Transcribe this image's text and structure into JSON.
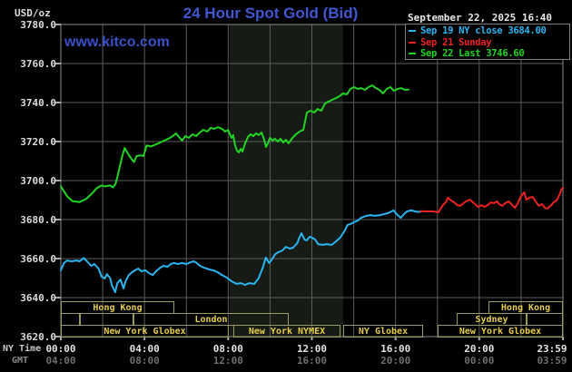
{
  "header": {
    "unit_label": "USD/oz",
    "title": "24 Hour Spot Gold (Bid)",
    "datetime": "September 22, 2025 16:40",
    "watermark": "www.kitco.com"
  },
  "legend": {
    "items": [
      {
        "label": "Sep 19 NY close 3684.00",
        "color": "#2ab4f0"
      },
      {
        "label": "Sep 21 Sunday",
        "color": "#ee2222"
      },
      {
        "label": "Sep 22 Last 3746.60",
        "color": "#22d422"
      }
    ]
  },
  "colors": {
    "background": "#000000",
    "grid": "#5c5c5c",
    "frame": "#8a8a8a",
    "tick": "#a8a8a8",
    "band": "#161b16",
    "session_border": "#9a9a58",
    "session_text": "#e6cc4c"
  },
  "chart_data": {
    "type": "line",
    "title": "24 Hour Spot Gold (Bid)",
    "ylabel": "USD/oz",
    "ylim": [
      3620,
      3780
    ],
    "y_ticks": [
      "3780.0",
      "3760.0",
      "3740.0",
      "3720.0",
      "3700.0",
      "3680.0",
      "3660.0",
      "3640.0",
      "3620.0"
    ],
    "y_tick_values": [
      3780,
      3760,
      3740,
      3720,
      3700,
      3680,
      3660,
      3640,
      3620
    ],
    "x_range_hours": [
      0,
      24
    ],
    "x_axis": {
      "ny_label": "NY Time",
      "gmt_label": "GMT",
      "ny_ticks": [
        "00:00",
        "04:00",
        "08:00",
        "12:00",
        "16:00",
        "20:00",
        "23:59"
      ],
      "gmt_ticks": [
        "04:00",
        "08:00",
        "12:00",
        "16:00",
        "20:00",
        "00:00",
        "03:59"
      ],
      "tick_hours": [
        0,
        4,
        8,
        12,
        16,
        20,
        24
      ]
    },
    "grid_step_hours": 2,
    "highlight_band_hours": [
      8.07,
      13.49
    ],
    "series": [
      {
        "name": "Sep 22 Last 3746.60",
        "color": "#22d422",
        "points": [
          [
            0,
            3697
          ],
          [
            0.3,
            3692
          ],
          [
            0.55,
            3689.5
          ],
          [
            0.9,
            3689
          ],
          [
            1.2,
            3690.5
          ],
          [
            1.5,
            3693.5
          ],
          [
            1.7,
            3696
          ],
          [
            1.95,
            3697.5
          ],
          [
            2.1,
            3697
          ],
          [
            2.35,
            3697.5
          ],
          [
            2.5,
            3696.5
          ],
          [
            2.62,
            3698.5
          ],
          [
            2.75,
            3704
          ],
          [
            2.92,
            3712
          ],
          [
            3.05,
            3716.7
          ],
          [
            3.2,
            3714
          ],
          [
            3.38,
            3711
          ],
          [
            3.5,
            3709.5
          ],
          [
            3.62,
            3712.5
          ],
          [
            3.8,
            3713
          ],
          [
            3.95,
            3712.5
          ],
          [
            4.1,
            3718
          ],
          [
            4.3,
            3717.5
          ],
          [
            4.55,
            3718.5
          ],
          [
            4.75,
            3719.5
          ],
          [
            4.95,
            3720.5
          ],
          [
            5.15,
            3721.5
          ],
          [
            5.35,
            3722.8
          ],
          [
            5.5,
            3724.2
          ],
          [
            5.65,
            3722.3
          ],
          [
            5.8,
            3720.5
          ],
          [
            5.95,
            3722.8
          ],
          [
            6.12,
            3721.9
          ],
          [
            6.3,
            3723.7
          ],
          [
            6.47,
            3722.8
          ],
          [
            6.65,
            3724.7
          ],
          [
            6.82,
            3726
          ],
          [
            7.0,
            3725.1
          ],
          [
            7.16,
            3727
          ],
          [
            7.33,
            3726.5
          ],
          [
            7.5,
            3727.4
          ],
          [
            7.7,
            3726.5
          ],
          [
            7.85,
            3725.1
          ],
          [
            8.0,
            3726
          ],
          [
            8.08,
            3723.7
          ],
          [
            8.16,
            3721.9
          ],
          [
            8.24,
            3723.3
          ],
          [
            8.33,
            3718.1
          ],
          [
            8.42,
            3715.3
          ],
          [
            8.51,
            3714.4
          ],
          [
            8.6,
            3716.3
          ],
          [
            8.68,
            3714.9
          ],
          [
            8.81,
            3719.1
          ],
          [
            8.94,
            3722.3
          ],
          [
            9.07,
            3723.7
          ],
          [
            9.2,
            3722.8
          ],
          [
            9.33,
            3724.2
          ],
          [
            9.46,
            3723.3
          ],
          [
            9.59,
            3724.7
          ],
          [
            9.72,
            3720.9
          ],
          [
            9.81,
            3717.2
          ],
          [
            9.9,
            3719.1
          ],
          [
            10.0,
            3721.9
          ],
          [
            10.11,
            3720.5
          ],
          [
            10.24,
            3721.4
          ],
          [
            10.37,
            3720
          ],
          [
            10.5,
            3721.4
          ],
          [
            10.63,
            3719.5
          ],
          [
            10.76,
            3720.9
          ],
          [
            10.89,
            3719.1
          ],
          [
            11.07,
            3721.9
          ],
          [
            11.24,
            3723.7
          ],
          [
            11.41,
            3725.1
          ],
          [
            11.59,
            3726
          ],
          [
            11.76,
            3734.9
          ],
          [
            11.93,
            3735.8
          ],
          [
            12.11,
            3734.9
          ],
          [
            12.28,
            3736.7
          ],
          [
            12.45,
            3735.8
          ],
          [
            12.63,
            3739.5
          ],
          [
            12.8,
            3740.5
          ],
          [
            12.97,
            3741.4
          ],
          [
            13.15,
            3742.3
          ],
          [
            13.32,
            3743.3
          ],
          [
            13.49,
            3744.7
          ],
          [
            13.67,
            3744.2
          ],
          [
            13.84,
            3747
          ],
          [
            14.02,
            3747.9
          ],
          [
            14.19,
            3747
          ],
          [
            14.36,
            3747.4
          ],
          [
            14.54,
            3746.5
          ],
          [
            14.71,
            3747.9
          ],
          [
            14.88,
            3748.8
          ],
          [
            15.06,
            3747.4
          ],
          [
            15.23,
            3746.5
          ],
          [
            15.4,
            3744.7
          ],
          [
            15.58,
            3747
          ],
          [
            15.75,
            3747.9
          ],
          [
            15.92,
            3746
          ],
          [
            16.1,
            3747
          ],
          [
            16.27,
            3747.4
          ],
          [
            16.44,
            3746.5
          ],
          [
            16.62,
            3746.6
          ]
        ]
      },
      {
        "name": "Sep 19 NY close 3684.00",
        "color": "#2ab4f0",
        "points": [
          [
            0,
            3654
          ],
          [
            0.15,
            3657.7
          ],
          [
            0.3,
            3659
          ],
          [
            0.5,
            3658.6
          ],
          [
            0.75,
            3659
          ],
          [
            0.9,
            3658.6
          ],
          [
            1.1,
            3660.3
          ],
          [
            1.25,
            3658.6
          ],
          [
            1.45,
            3656.3
          ],
          [
            1.6,
            3657.2
          ],
          [
            1.8,
            3654.9
          ],
          [
            1.95,
            3650.7
          ],
          [
            2.1,
            3649.8
          ],
          [
            2.2,
            3652
          ],
          [
            2.35,
            3650.2
          ],
          [
            2.45,
            3646
          ],
          [
            2.6,
            3642.8
          ],
          [
            2.7,
            3647.4
          ],
          [
            2.85,
            3649.3
          ],
          [
            3.0,
            3644.7
          ],
          [
            3.1,
            3648.4
          ],
          [
            3.25,
            3651.6
          ],
          [
            3.4,
            3653
          ],
          [
            3.55,
            3654
          ],
          [
            3.7,
            3654.9
          ],
          [
            3.85,
            3653.5
          ],
          [
            4.05,
            3654
          ],
          [
            4.2,
            3652.6
          ],
          [
            4.4,
            3651.6
          ],
          [
            4.55,
            3653.5
          ],
          [
            4.75,
            3655.3
          ],
          [
            4.9,
            3656.3
          ],
          [
            5.1,
            3655.8
          ],
          [
            5.25,
            3657.2
          ],
          [
            5.4,
            3657.7
          ],
          [
            5.6,
            3657.2
          ],
          [
            5.8,
            3657.7
          ],
          [
            6.0,
            3657.2
          ],
          [
            6.2,
            3658.1
          ],
          [
            6.35,
            3658.6
          ],
          [
            6.5,
            3657.7
          ],
          [
            6.65,
            3656.3
          ],
          [
            6.85,
            3655.3
          ],
          [
            7.1,
            3654.4
          ],
          [
            7.3,
            3653.9
          ],
          [
            7.5,
            3653
          ],
          [
            7.7,
            3651.6
          ],
          [
            7.95,
            3650.2
          ],
          [
            8.15,
            3648.4
          ],
          [
            8.4,
            3647
          ],
          [
            8.6,
            3647.4
          ],
          [
            8.8,
            3646.5
          ],
          [
            9.0,
            3647.4
          ],
          [
            9.25,
            3647
          ],
          [
            9.45,
            3649.8
          ],
          [
            9.65,
            3655.3
          ],
          [
            9.8,
            3660.5
          ],
          [
            9.95,
            3657.7
          ],
          [
            10.05,
            3659
          ],
          [
            10.25,
            3662.3
          ],
          [
            10.4,
            3663.3
          ],
          [
            10.6,
            3664.2
          ],
          [
            10.75,
            3666
          ],
          [
            10.95,
            3665.1
          ],
          [
            11.1,
            3665.6
          ],
          [
            11.3,
            3667.9
          ],
          [
            11.4,
            3670.7
          ],
          [
            11.5,
            3673
          ],
          [
            11.65,
            3669.8
          ],
          [
            11.75,
            3669.3
          ],
          [
            11.9,
            3671.2
          ],
          [
            12.0,
            3670.7
          ],
          [
            12.15,
            3669.8
          ],
          [
            12.3,
            3667.4
          ],
          [
            12.5,
            3667
          ],
          [
            12.7,
            3667.4
          ],
          [
            12.95,
            3667
          ],
          [
            13.15,
            3668.8
          ],
          [
            13.35,
            3670.7
          ],
          [
            13.55,
            3673.9
          ],
          [
            13.7,
            3677.2
          ],
          [
            13.85,
            3677.7
          ],
          [
            14.0,
            3678.6
          ],
          [
            14.2,
            3679.5
          ],
          [
            14.35,
            3680.9
          ],
          [
            14.6,
            3681.9
          ],
          [
            14.8,
            3682.3
          ],
          [
            15.0,
            3681.9
          ],
          [
            15.25,
            3682.3
          ],
          [
            15.45,
            3682.8
          ],
          [
            15.65,
            3683.3
          ],
          [
            15.9,
            3684.7
          ],
          [
            16.05,
            3682.8
          ],
          [
            16.25,
            3680.9
          ],
          [
            16.4,
            3682.8
          ],
          [
            16.55,
            3684.2
          ],
          [
            16.75,
            3684.7
          ],
          [
            17.0,
            3684
          ],
          [
            17.2,
            3684
          ]
        ]
      },
      {
        "name": "Sep 21 Sunday",
        "color": "#ee2222",
        "points": [
          [
            17.2,
            3684.3
          ],
          [
            17.5,
            3684.2
          ],
          [
            17.8,
            3684.2
          ],
          [
            18.05,
            3683.7
          ],
          [
            18.15,
            3685.6
          ],
          [
            18.3,
            3687.9
          ],
          [
            18.4,
            3688.8
          ],
          [
            18.5,
            3691.2
          ],
          [
            18.65,
            3689.8
          ],
          [
            18.8,
            3688.8
          ],
          [
            18.95,
            3687.4
          ],
          [
            19.1,
            3687
          ],
          [
            19.25,
            3688.4
          ],
          [
            19.35,
            3689.3
          ],
          [
            19.55,
            3690.2
          ],
          [
            19.65,
            3689.3
          ],
          [
            19.85,
            3687.4
          ],
          [
            19.95,
            3686.5
          ],
          [
            20.1,
            3687.4
          ],
          [
            20.25,
            3686.5
          ],
          [
            20.4,
            3687.4
          ],
          [
            20.55,
            3688.8
          ],
          [
            20.7,
            3688.4
          ],
          [
            20.85,
            3689.3
          ],
          [
            20.95,
            3687.9
          ],
          [
            21.1,
            3687
          ],
          [
            21.25,
            3688.4
          ],
          [
            21.4,
            3689.3
          ],
          [
            21.55,
            3687.9
          ],
          [
            21.7,
            3686
          ],
          [
            21.85,
            3688.4
          ],
          [
            21.95,
            3691.2
          ],
          [
            22.15,
            3694
          ],
          [
            22.25,
            3690.2
          ],
          [
            22.4,
            3691.2
          ],
          [
            22.55,
            3691.6
          ],
          [
            22.7,
            3689.3
          ],
          [
            22.85,
            3687
          ],
          [
            23.0,
            3687.9
          ],
          [
            23.15,
            3686
          ],
          [
            23.25,
            3685.6
          ],
          [
            23.45,
            3687.4
          ],
          [
            23.55,
            3688.8
          ],
          [
            23.7,
            3689.8
          ],
          [
            23.85,
            3693
          ],
          [
            23.92,
            3695.3
          ],
          [
            24,
            3696.3
          ]
        ]
      }
    ],
    "sessions": {
      "rows": [
        {
          "boxes": [
            {
              "start_h": 0,
              "end_h": 5.42,
              "label": "Hong Kong"
            },
            {
              "start_h": 20.44,
              "end_h": 24,
              "label": "Hong Kong"
            }
          ]
        },
        {
          "boxes": [
            {
              "start_h": 0,
              "end_h": 0.91,
              "label": ""
            },
            {
              "start_h": 0.91,
              "end_h": 3.47,
              "label": ""
            },
            {
              "start_h": 3.47,
              "end_h": 10.89,
              "label": "London"
            },
            {
              "start_h": 18.92,
              "end_h": 22.26,
              "label": "Sydney"
            },
            {
              "start_h": 22.26,
              "end_h": 24,
              "label": ""
            }
          ]
        },
        {
          "boxes": [
            {
              "start_h": 0,
              "end_h": 8.03,
              "label": "New York Globex"
            },
            {
              "start_h": 8.24,
              "end_h": 13.37,
              "label": "New York NYMEX"
            },
            {
              "start_h": 13.5,
              "end_h": 17.32,
              "label": "NY Globex"
            },
            {
              "start_h": 18.01,
              "end_h": 24,
              "label": "New York Globex"
            }
          ]
        }
      ]
    }
  }
}
